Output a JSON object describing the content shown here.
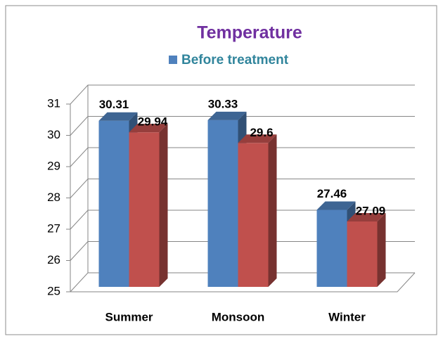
{
  "chart_data": {
    "type": "bar3d",
    "title": "Temperature",
    "categories": [
      "Summer",
      "Monsoon",
      "Winter"
    ],
    "series": [
      {
        "name": "Before treatment",
        "color": "#4f81bd",
        "values": [
          30.31,
          30.33,
          27.46
        ]
      },
      {
        "color": "#c0504d",
        "values": [
          29.94,
          29.6,
          27.09
        ]
      }
    ],
    "ylim": [
      25,
      31
    ],
    "yticks": [
      25,
      26,
      27,
      28,
      29,
      30,
      31
    ],
    "grid": true,
    "legend": "top"
  }
}
